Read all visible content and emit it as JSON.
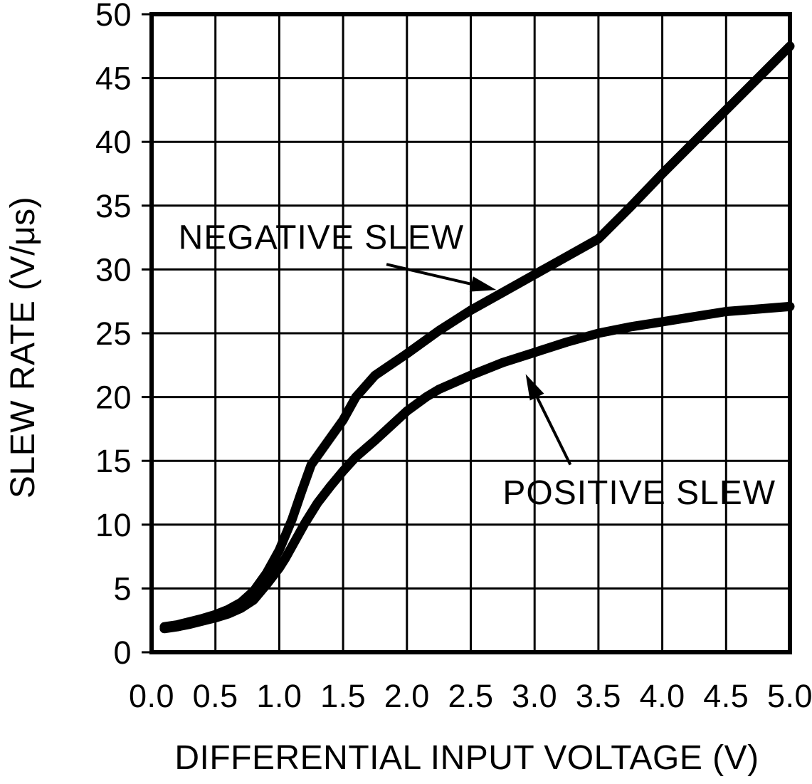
{
  "figure": {
    "background": "#ffffff",
    "ink": "#000000"
  },
  "chart_data": {
    "type": "line",
    "title": "",
    "xlabel": "DIFFERENTIAL INPUT VOLTAGE (V)",
    "ylabel": "SLEW RATE (V/μs)",
    "xlim": [
      0,
      5
    ],
    "ylim": [
      0,
      50
    ],
    "xtick_labels": [
      "0.0",
      "0.5",
      "1.0",
      "1.5",
      "2.0",
      "2.5",
      "3.0",
      "3.5",
      "4.0",
      "4.5",
      "5.0"
    ],
    "ytick_labels": [
      "0",
      "5",
      "10",
      "15",
      "20",
      "25",
      "30",
      "35",
      "40",
      "45",
      "50"
    ],
    "grid": "major grid on, every 0.5 V horizontally and 5 V/μs vertically",
    "legend_position": "inline labels with arrows",
    "series": [
      {
        "name": "NEGATIVE SLEW",
        "points": [
          [
            0.1,
            2.0
          ],
          [
            0.2,
            2.15
          ],
          [
            0.3,
            2.4
          ],
          [
            0.4,
            2.65
          ],
          [
            0.5,
            2.95
          ],
          [
            0.6,
            3.35
          ],
          [
            0.7,
            3.9
          ],
          [
            0.8,
            4.8
          ],
          [
            0.9,
            6.2
          ],
          [
            1.0,
            8.0
          ],
          [
            1.1,
            10.4
          ],
          [
            1.175,
            12.6
          ],
          [
            1.25,
            14.7
          ],
          [
            1.4,
            16.8
          ],
          [
            1.5,
            18.2
          ],
          [
            1.6,
            20.0
          ],
          [
            1.75,
            21.7
          ],
          [
            2.0,
            23.4
          ],
          [
            2.25,
            25.2
          ],
          [
            2.5,
            26.8
          ],
          [
            2.75,
            28.2
          ],
          [
            3.0,
            29.6
          ],
          [
            3.25,
            31.0
          ],
          [
            3.5,
            32.4
          ],
          [
            3.75,
            34.9
          ],
          [
            4.0,
            37.5
          ],
          [
            4.25,
            40.0
          ],
          [
            4.5,
            42.5
          ],
          [
            4.75,
            45.0
          ],
          [
            5.0,
            47.5
          ]
        ]
      },
      {
        "name": "POSITIVE SLEW",
        "points": [
          [
            0.1,
            1.85
          ],
          [
            0.2,
            2.0
          ],
          [
            0.3,
            2.2
          ],
          [
            0.4,
            2.45
          ],
          [
            0.5,
            2.7
          ],
          [
            0.6,
            3.0
          ],
          [
            0.7,
            3.45
          ],
          [
            0.8,
            4.1
          ],
          [
            0.9,
            5.3
          ],
          [
            1.0,
            6.6
          ],
          [
            1.05,
            7.4
          ],
          [
            1.1,
            8.3
          ],
          [
            1.2,
            10.1
          ],
          [
            1.3,
            11.7
          ],
          [
            1.4,
            13.0
          ],
          [
            1.5,
            14.2
          ],
          [
            1.6,
            15.3
          ],
          [
            1.75,
            16.6
          ],
          [
            2.0,
            18.9
          ],
          [
            2.15,
            20.0
          ],
          [
            2.25,
            20.6
          ],
          [
            2.5,
            21.7
          ],
          [
            2.75,
            22.7
          ],
          [
            3.0,
            23.5
          ],
          [
            3.25,
            24.3
          ],
          [
            3.5,
            25.0
          ],
          [
            3.75,
            25.5
          ],
          [
            4.0,
            25.9
          ],
          [
            4.25,
            26.3
          ],
          [
            4.5,
            26.7
          ],
          [
            4.75,
            26.9
          ],
          [
            5.0,
            27.1
          ]
        ]
      }
    ],
    "annotations": [
      {
        "label": "NEGATIVE SLEW",
        "label_anchor_data": [
          0.21,
          31.6
        ],
        "arrow_from_data": [
          1.84,
          30.4
        ],
        "arrow_to_data": [
          2.7,
          28.4
        ]
      },
      {
        "label": "POSITIVE SLEW",
        "label_anchor_data": [
          2.75,
          11.6
        ],
        "arrow_from_data": [
          3.28,
          14.7
        ],
        "arrow_to_data": [
          2.93,
          21.8
        ]
      }
    ]
  }
}
